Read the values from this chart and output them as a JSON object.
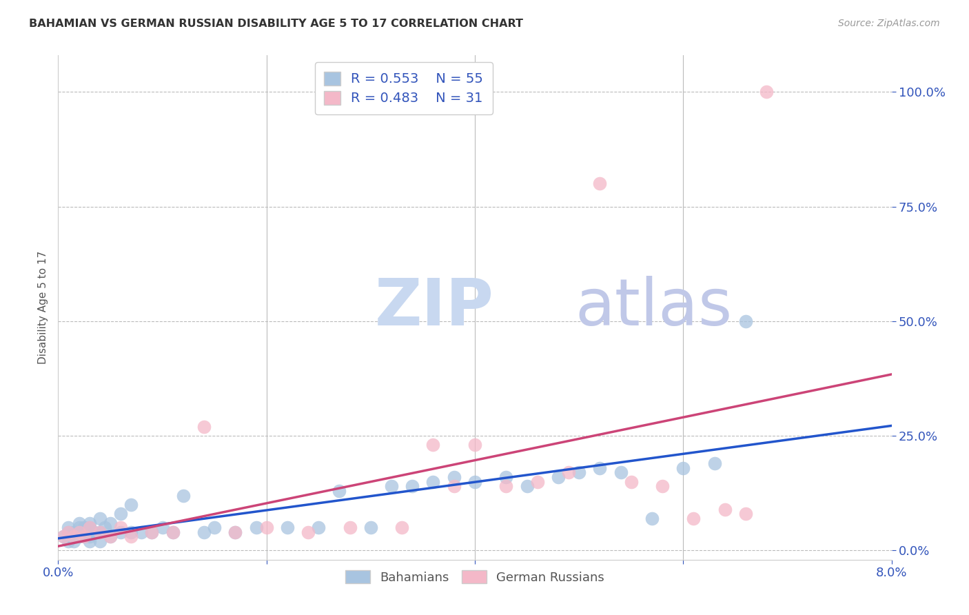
{
  "title": "BAHAMIAN VS GERMAN RUSSIAN DISABILITY AGE 5 TO 17 CORRELATION CHART",
  "source": "Source: ZipAtlas.com",
  "ylabel": "Disability Age 5 to 17",
  "xlim": [
    0.0,
    0.08
  ],
  "ylim": [
    -0.02,
    1.08
  ],
  "xticks": [
    0.0,
    0.02,
    0.04,
    0.06,
    0.08
  ],
  "xtick_labels": [
    "0.0%",
    "",
    "",
    "",
    "8.0%"
  ],
  "ytick_labels": [
    "0.0%",
    "25.0%",
    "50.0%",
    "75.0%",
    "100.0%"
  ],
  "yticks": [
    0.0,
    0.25,
    0.5,
    0.75,
    1.0
  ],
  "bahamian_color": "#a8c4e0",
  "german_russian_color": "#f4b8c8",
  "bahamian_line_color": "#2255cc",
  "german_russian_line_color": "#cc4477",
  "watermark_zip_color": "#c8d8f0",
  "watermark_atlas_color": "#c0c8e8",
  "legend_R1": "R = 0.553",
  "legend_N1": "N = 55",
  "legend_R2": "R = 0.483",
  "legend_N2": "N = 31",
  "bahamian_x": [
    0.0005,
    0.001,
    0.001,
    0.001,
    0.0015,
    0.0015,
    0.002,
    0.002,
    0.002,
    0.002,
    0.0025,
    0.0025,
    0.003,
    0.003,
    0.003,
    0.003,
    0.0035,
    0.004,
    0.004,
    0.004,
    0.0045,
    0.005,
    0.005,
    0.006,
    0.006,
    0.007,
    0.007,
    0.008,
    0.009,
    0.01,
    0.011,
    0.012,
    0.014,
    0.015,
    0.017,
    0.019,
    0.022,
    0.025,
    0.027,
    0.03,
    0.032,
    0.034,
    0.036,
    0.038,
    0.04,
    0.043,
    0.045,
    0.048,
    0.05,
    0.052,
    0.054,
    0.057,
    0.06,
    0.063,
    0.066
  ],
  "bahamian_y": [
    0.03,
    0.02,
    0.04,
    0.05,
    0.02,
    0.04,
    0.03,
    0.04,
    0.05,
    0.06,
    0.03,
    0.05,
    0.02,
    0.03,
    0.05,
    0.06,
    0.04,
    0.02,
    0.04,
    0.07,
    0.05,
    0.03,
    0.06,
    0.04,
    0.08,
    0.04,
    0.1,
    0.04,
    0.04,
    0.05,
    0.04,
    0.12,
    0.04,
    0.05,
    0.04,
    0.05,
    0.05,
    0.05,
    0.13,
    0.05,
    0.14,
    0.14,
    0.15,
    0.16,
    0.15,
    0.16,
    0.14,
    0.16,
    0.17,
    0.18,
    0.17,
    0.07,
    0.18,
    0.19,
    0.5
  ],
  "german_russian_x": [
    0.0005,
    0.001,
    0.0015,
    0.002,
    0.0025,
    0.003,
    0.004,
    0.005,
    0.006,
    0.007,
    0.009,
    0.011,
    0.014,
    0.017,
    0.02,
    0.024,
    0.028,
    0.033,
    0.036,
    0.038,
    0.04,
    0.043,
    0.046,
    0.049,
    0.052,
    0.055,
    0.058,
    0.061,
    0.064,
    0.066,
    0.068
  ],
  "german_russian_y": [
    0.03,
    0.04,
    0.03,
    0.04,
    0.03,
    0.05,
    0.04,
    0.03,
    0.05,
    0.03,
    0.04,
    0.04,
    0.27,
    0.04,
    0.05,
    0.04,
    0.05,
    0.05,
    0.23,
    0.14,
    0.23,
    0.14,
    0.15,
    0.17,
    0.8,
    0.15,
    0.14,
    0.07,
    0.09,
    0.08,
    1.0
  ],
  "background_color": "#ffffff",
  "grid_color": "#bbbbbb"
}
